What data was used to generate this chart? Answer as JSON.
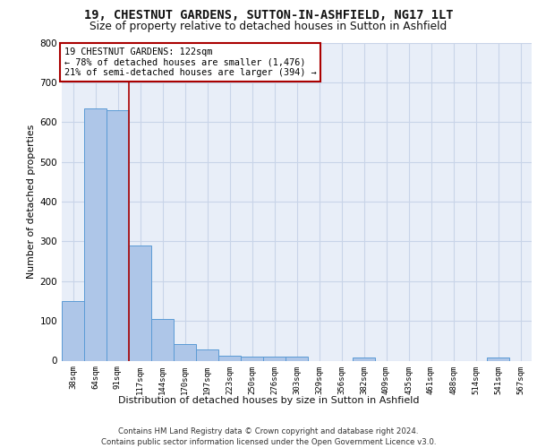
{
  "title_line1": "19, CHESTNUT GARDENS, SUTTON-IN-ASHFIELD, NG17 1LT",
  "title_line2": "Size of property relative to detached houses in Sutton in Ashfield",
  "xlabel": "Distribution of detached houses by size in Sutton in Ashfield",
  "ylabel": "Number of detached properties",
  "footnote": "Contains HM Land Registry data © Crown copyright and database right 2024.\nContains public sector information licensed under the Open Government Licence v3.0.",
  "bin_labels": [
    "38sqm",
    "64sqm",
    "91sqm",
    "117sqm",
    "144sqm",
    "170sqm",
    "197sqm",
    "223sqm",
    "250sqm",
    "276sqm",
    "303sqm",
    "329sqm",
    "356sqm",
    "382sqm",
    "409sqm",
    "435sqm",
    "461sqm",
    "488sqm",
    "514sqm",
    "541sqm",
    "567sqm"
  ],
  "bar_values": [
    150,
    635,
    630,
    290,
    105,
    42,
    28,
    12,
    11,
    11,
    10,
    0,
    0,
    8,
    0,
    0,
    0,
    0,
    0,
    8,
    0
  ],
  "bar_color": "#aec6e8",
  "bar_edge_color": "#5b9bd5",
  "grid_color": "#c8d4e8",
  "annotation_text": "19 CHESTNUT GARDENS: 122sqm\n← 78% of detached houses are smaller (1,476)\n21% of semi-detached houses are larger (394) →",
  "vline_x": 2.5,
  "vline_color": "#aa0000",
  "ylim": [
    0,
    800
  ],
  "yticks": [
    0,
    100,
    200,
    300,
    400,
    500,
    600,
    700,
    800
  ],
  "plot_bg_color": "#e8eef8"
}
